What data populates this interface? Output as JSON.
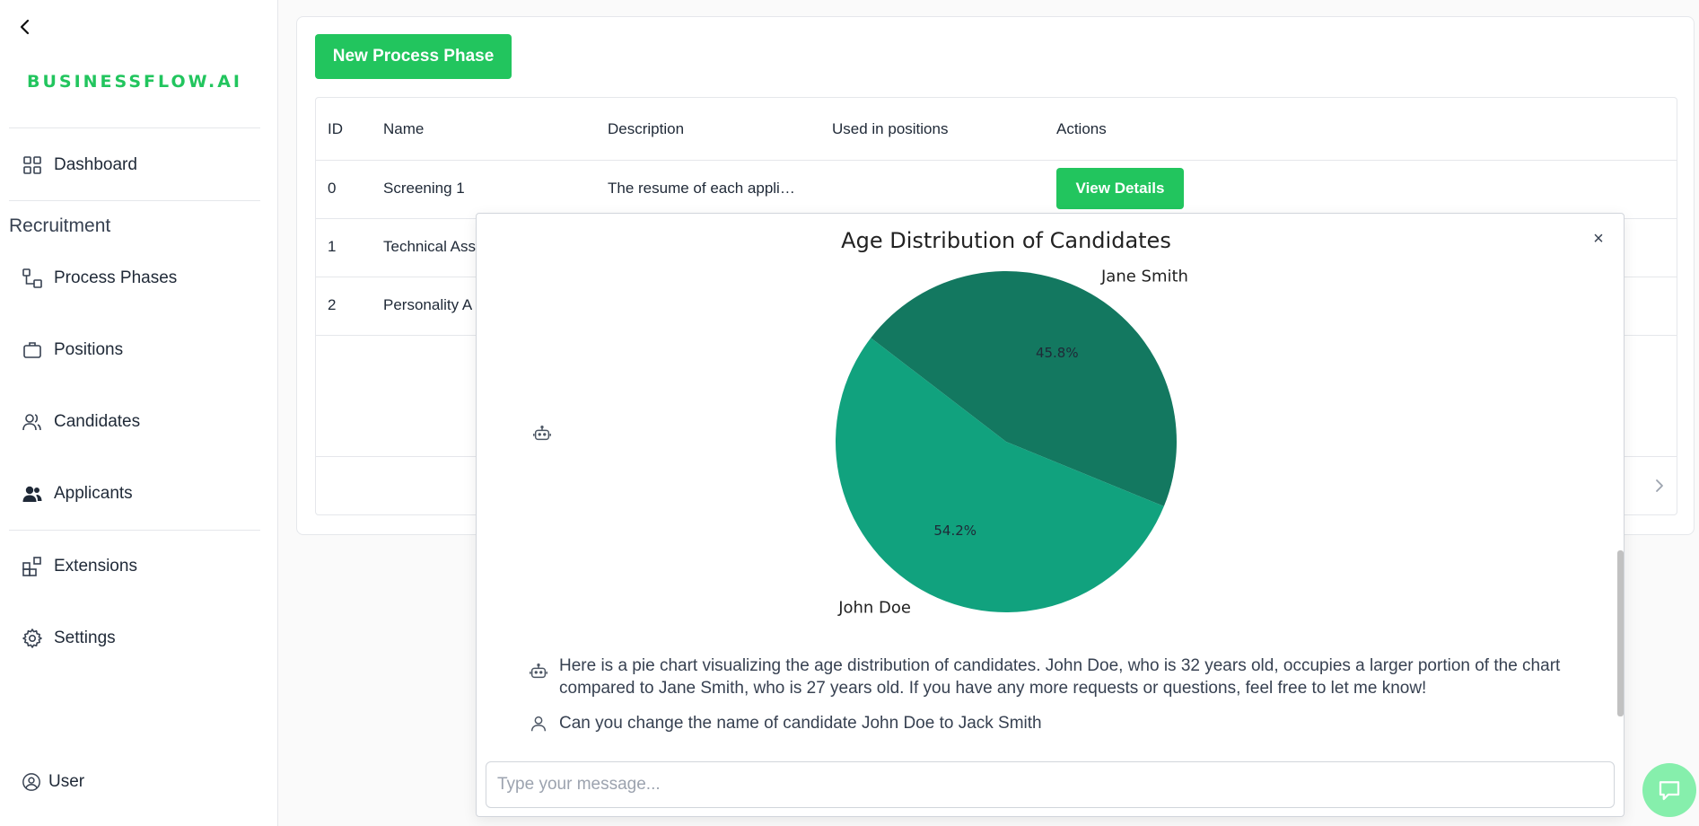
{
  "sidebar": {
    "logo": "BUSINESSFLOW.AI",
    "dashboard": "Dashboard",
    "section": "Recruitment",
    "items": [
      "Process Phases",
      "Positions",
      "Candidates",
      "Applicants"
    ],
    "extensions": "Extensions",
    "settings": "Settings",
    "user": "User"
  },
  "main": {
    "new_button": "New Process Phase",
    "columns": [
      "ID",
      "Name",
      "Description",
      "Used in positions",
      "Actions"
    ],
    "rows": [
      {
        "id": "0",
        "name": "Screening 1",
        "description": "The resume of each appli…",
        "used": "",
        "action": "View Details"
      },
      {
        "id": "1",
        "name": "Technical Ass",
        "description": "",
        "used": "",
        "action": ""
      },
      {
        "id": "2",
        "name": "Personality A",
        "description": "",
        "used": "",
        "action": ""
      }
    ]
  },
  "chat": {
    "close": "×",
    "messages": [
      {
        "role": "assistant",
        "text": "Here is a pie chart visualizing the age distribution of candidates. John Doe, who is 32 years old, occupies a larger portion of the chart compared to Jane Smith, who is 27 years old. If you have any more requests or questions, feel free to let me know!"
      },
      {
        "role": "user",
        "text": "Can you change the name of candidate John Doe to Jack Smith"
      }
    ],
    "input_placeholder": "Type your message..."
  },
  "chart_data": {
    "type": "pie",
    "title": "Age Distribution of Candidates",
    "labels": [
      "Jane Smith",
      "John Doe"
    ],
    "values": [
      27,
      32
    ],
    "percent_labels": [
      "45.8%",
      "54.2%"
    ],
    "colors": [
      "#137860",
      "#11a27e"
    ]
  },
  "colors": {
    "accent": "#22c55e",
    "fab": "#86efac"
  }
}
